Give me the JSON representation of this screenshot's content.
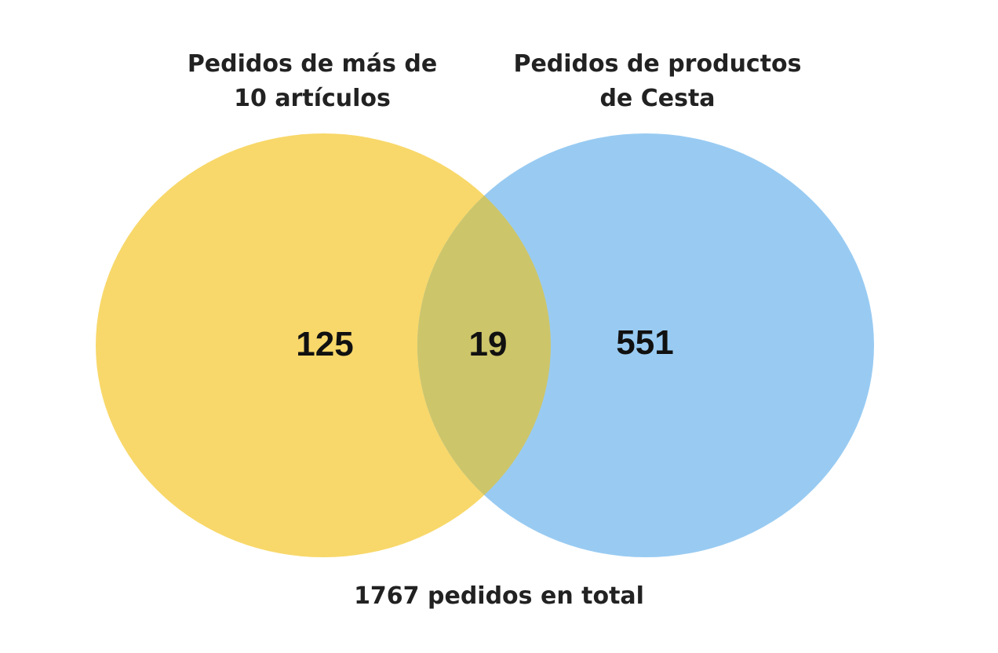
{
  "diagram": {
    "type": "venn",
    "sets": [
      {
        "id": "left",
        "label_lines": [
          "Pedidos de más de",
          "10 artículos"
        ],
        "only_count": "125",
        "color": "#f8d86a"
      },
      {
        "id": "right",
        "label_lines": [
          "Pedidos de productos",
          "de Cesta"
        ],
        "only_count": "551",
        "color": "#99cbf2"
      }
    ],
    "overlap_count": "19",
    "overlap_color": "#cdc56a",
    "total_caption": "1767 pedidos en total"
  }
}
